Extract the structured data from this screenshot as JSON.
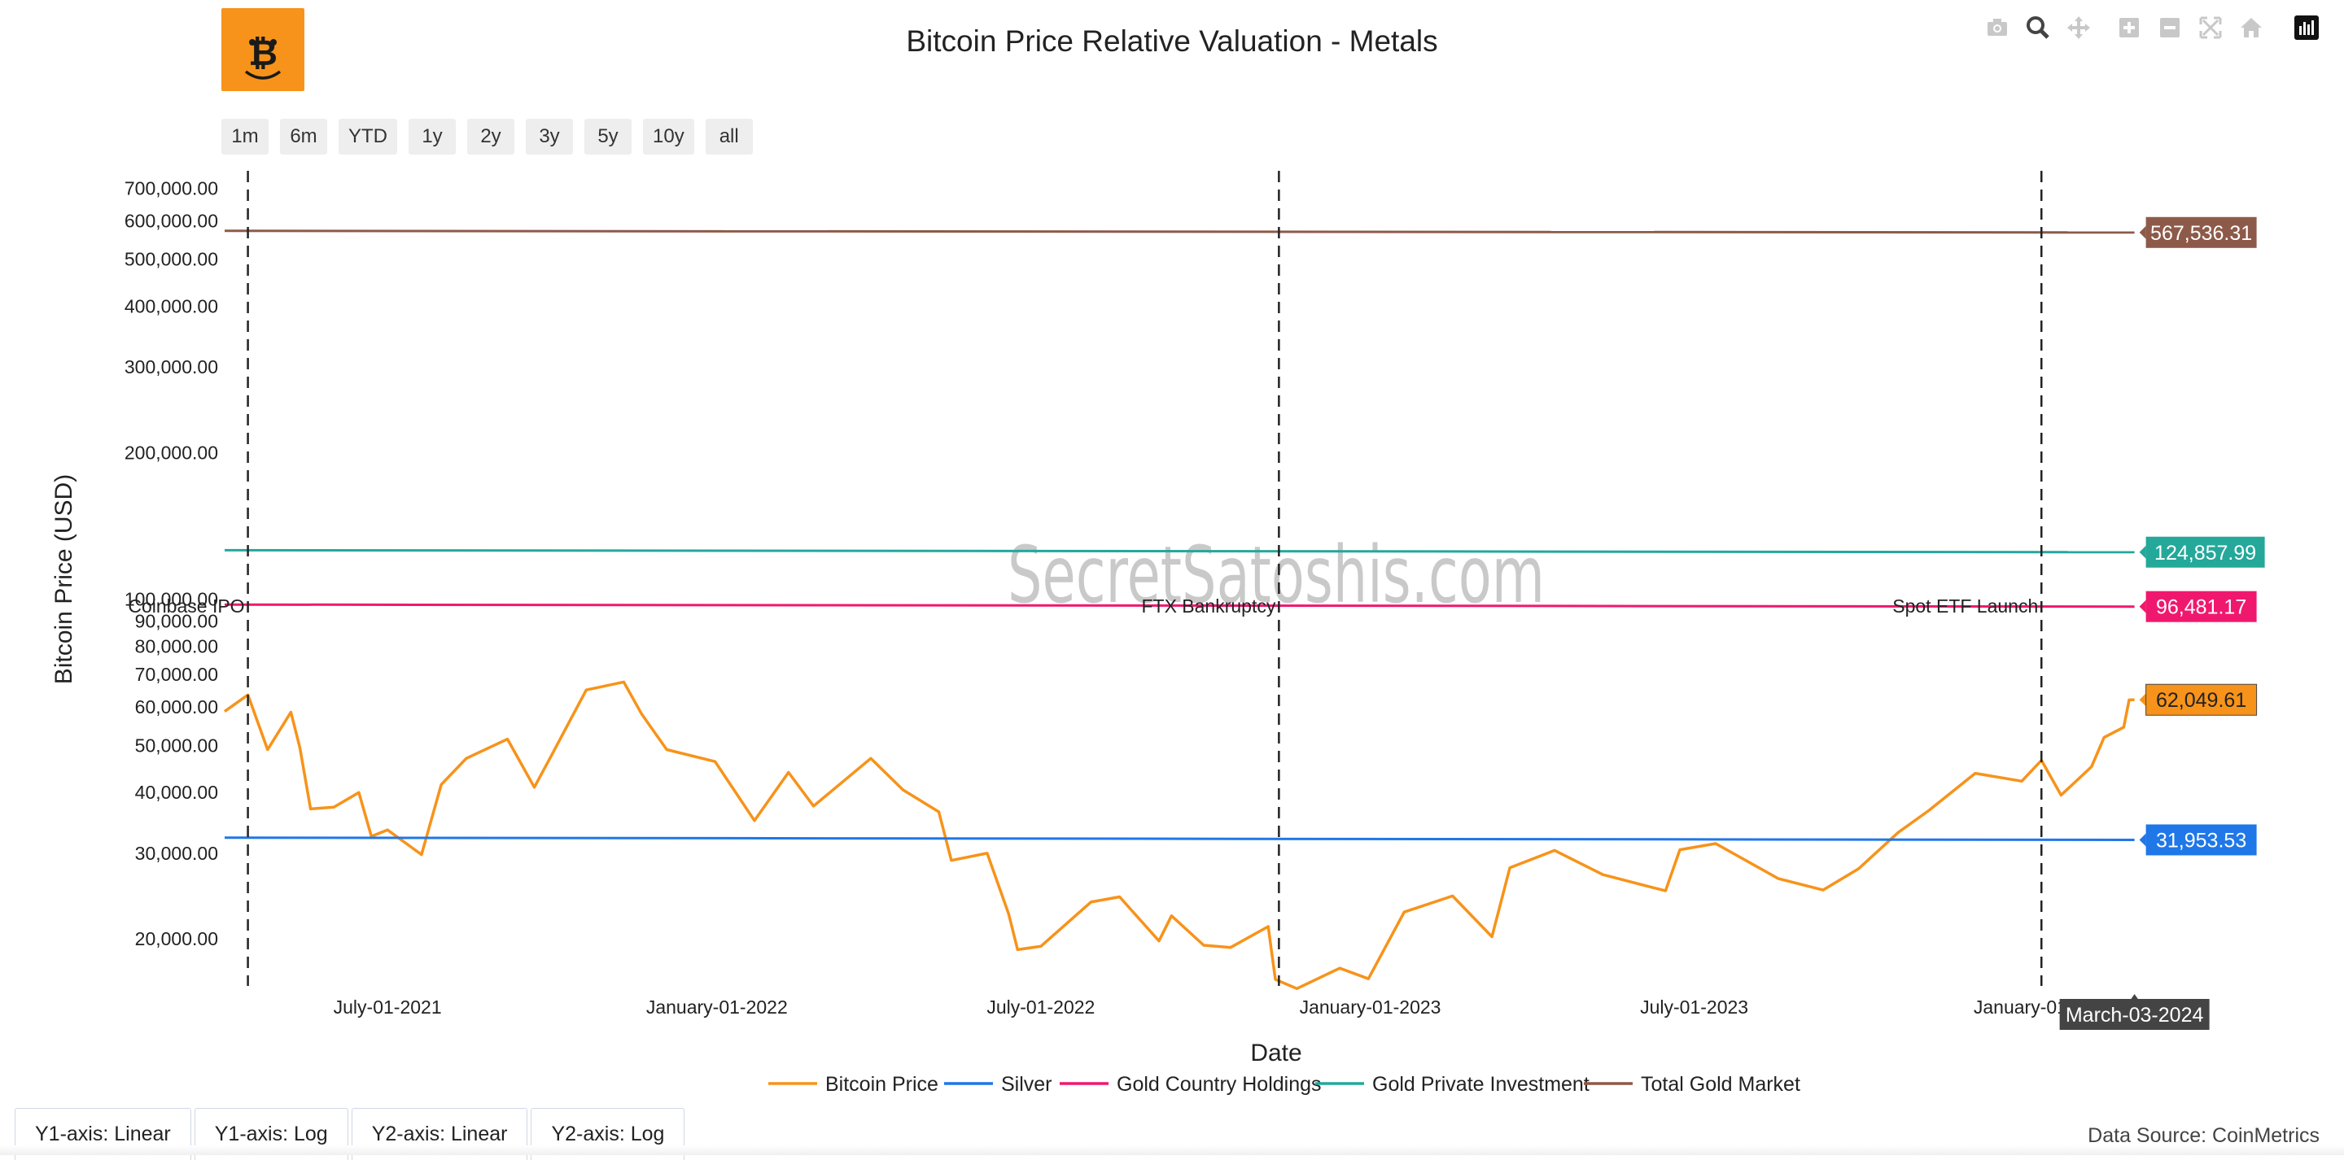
{
  "app": {
    "logo_icon": "bitcoin-face-logo-icon",
    "brand_color": "#f7931a"
  },
  "modebar": [
    {
      "name": "camera-icon",
      "label": "Download plot as png"
    },
    {
      "name": "zoom-icon",
      "label": "Zoom"
    },
    {
      "name": "pan-icon",
      "label": "Pan"
    },
    {
      "name": "zoom-in-icon",
      "label": "Zoom in"
    },
    {
      "name": "zoom-out-icon",
      "label": "Zoom out"
    },
    {
      "name": "autoscale-icon",
      "label": "Autoscale"
    },
    {
      "name": "reset-axes-icon",
      "label": "Reset axes"
    },
    {
      "name": "plotly-logo-icon",
      "label": "Produced with Plotly"
    }
  ],
  "range_buttons": [
    "1m",
    "6m",
    "YTD",
    "1y",
    "2y",
    "3y",
    "5y",
    "10y",
    "all"
  ],
  "axis_toggles": [
    "Y1-axis: Linear",
    "Y1-axis: Log",
    "Y2-axis: Linear",
    "Y2-axis: Log"
  ],
  "data_source": "Data Source: CoinMetrics",
  "watermark": "SecretSatoshis.com",
  "hover_label": "March-03-2024",
  "chart_data": {
    "type": "line",
    "title": "Bitcoin Price Relative Valuation - Metals",
    "xlabel": "Date",
    "ylabel": "Bitcoin Price (USD)",
    "y_scale": "log",
    "ylim": [
      16000,
      760000
    ],
    "xlim": [
      "2021-04-01",
      "2024-03-20"
    ],
    "grid": false,
    "legend_placement": "bottom-center",
    "y_ticks": [
      {
        "value": 20000,
        "label": "20,000.00"
      },
      {
        "value": 30000,
        "label": "30,000.00"
      },
      {
        "value": 40000,
        "label": "40,000.00"
      },
      {
        "value": 50000,
        "label": "50,000.00"
      },
      {
        "value": 60000,
        "label": "60,000.00"
      },
      {
        "value": 70000,
        "label": "70,000.00"
      },
      {
        "value": 80000,
        "label": "80,000.00"
      },
      {
        "value": 90000,
        "label": "90,000.00"
      },
      {
        "value": 100000,
        "label": "100,000.00"
      },
      {
        "value": 200000,
        "label": "200,000.00"
      },
      {
        "value": 300000,
        "label": "300,000.00"
      },
      {
        "value": 400000,
        "label": "400,000.00"
      },
      {
        "value": 500000,
        "label": "500,000.00"
      },
      {
        "value": 600000,
        "label": "600,000.00"
      },
      {
        "value": 700000,
        "label": "700,000.00"
      }
    ],
    "x_ticks": [
      {
        "date": "2021-07-01",
        "label": "July-01-2021"
      },
      {
        "date": "2022-01-01",
        "label": "January-01-2022"
      },
      {
        "date": "2022-07-01",
        "label": "July-01-2022"
      },
      {
        "date": "2023-01-01",
        "label": "January-01-2023"
      },
      {
        "date": "2023-07-01",
        "label": "July-01-2023"
      },
      {
        "date": "2024-01-01",
        "label": "January-01-"
      }
    ],
    "events": [
      {
        "date": "2021-04-14",
        "label": "Coinbase IPO"
      },
      {
        "date": "2022-11-11",
        "label": "FTX Bankruptcy"
      },
      {
        "date": "2024-01-11",
        "label": "Spot ETF Launch"
      }
    ],
    "series": [
      {
        "name": "Bitcoin Price",
        "color": "#f7931a",
        "end_label": "62,049.61",
        "points": [
          [
            "2021-04-01",
            58700
          ],
          [
            "2021-04-14",
            63500
          ],
          [
            "2021-04-25",
            49000
          ],
          [
            "2021-05-08",
            58500
          ],
          [
            "2021-05-13",
            49500
          ],
          [
            "2021-05-19",
            37000
          ],
          [
            "2021-06-01",
            37300
          ],
          [
            "2021-06-15",
            40000
          ],
          [
            "2021-06-22",
            32500
          ],
          [
            "2021-07-01",
            33500
          ],
          [
            "2021-07-20",
            29800
          ],
          [
            "2021-07-31",
            41500
          ],
          [
            "2021-08-14",
            47000
          ],
          [
            "2021-09-06",
            51500
          ],
          [
            "2021-09-21",
            41000
          ],
          [
            "2021-10-01",
            48000
          ],
          [
            "2021-10-20",
            65000
          ],
          [
            "2021-11-10",
            67500
          ],
          [
            "2021-11-20",
            58000
          ],
          [
            "2021-12-04",
            49000
          ],
          [
            "2021-12-31",
            46300
          ],
          [
            "2022-01-22",
            35000
          ],
          [
            "2022-02-10",
            44000
          ],
          [
            "2022-02-24",
            37500
          ],
          [
            "2022-03-28",
            47000
          ],
          [
            "2022-04-15",
            40500
          ],
          [
            "2022-05-05",
            36500
          ],
          [
            "2022-05-12",
            29000
          ],
          [
            "2022-06-01",
            30000
          ],
          [
            "2022-06-13",
            22500
          ],
          [
            "2022-06-18",
            19000
          ],
          [
            "2022-07-01",
            19300
          ],
          [
            "2022-07-29",
            23800
          ],
          [
            "2022-08-14",
            24400
          ],
          [
            "2022-09-05",
            19800
          ],
          [
            "2022-09-12",
            22300
          ],
          [
            "2022-09-30",
            19400
          ],
          [
            "2022-10-15",
            19200
          ],
          [
            "2022-11-05",
            21200
          ],
          [
            "2022-11-09",
            16500
          ],
          [
            "2022-11-21",
            15800
          ],
          [
            "2022-12-15",
            17400
          ],
          [
            "2022-12-31",
            16550
          ],
          [
            "2023-01-20",
            22700
          ],
          [
            "2023-02-16",
            24500
          ],
          [
            "2023-03-10",
            20200
          ],
          [
            "2023-03-20",
            28000
          ],
          [
            "2023-04-14",
            30400
          ],
          [
            "2023-05-11",
            27100
          ],
          [
            "2023-06-15",
            25100
          ],
          [
            "2023-06-23",
            30500
          ],
          [
            "2023-07-13",
            31400
          ],
          [
            "2023-08-17",
            26600
          ],
          [
            "2023-09-11",
            25200
          ],
          [
            "2023-10-01",
            27900
          ],
          [
            "2023-10-23",
            33100
          ],
          [
            "2023-11-09",
            36700
          ],
          [
            "2023-12-05",
            43800
          ],
          [
            "2023-12-31",
            42200
          ],
          [
            "2024-01-11",
            46600
          ],
          [
            "2024-01-22",
            39500
          ],
          [
            "2024-02-08",
            45200
          ],
          [
            "2024-02-15",
            51900
          ],
          [
            "2024-02-26",
            54500
          ],
          [
            "2024-02-29",
            62000
          ],
          [
            "2024-03-03",
            62049.61
          ]
        ]
      },
      {
        "name": "Silver",
        "color": "#1f77e8",
        "end_label": "31,953.53",
        "points": [
          [
            "2021-04-01",
            32300
          ],
          [
            "2024-03-03",
            31953.53
          ]
        ]
      },
      {
        "name": "Gold Country Holdings",
        "color": "#f0186e",
        "end_label": "96,481.17",
        "points": [
          [
            "2021-04-01",
            97400
          ],
          [
            "2024-03-03",
            96481.17
          ]
        ]
      },
      {
        "name": "Gold Private Investment",
        "color": "#24a89a",
        "end_label": "124,857.99",
        "points": [
          [
            "2021-04-01",
            126000
          ],
          [
            "2024-03-03",
            124857.99
          ]
        ]
      },
      {
        "name": "Total Gold Market",
        "color": "#8d5a49",
        "end_label": "567,536.31",
        "points": [
          [
            "2021-04-01",
            572000
          ],
          [
            "2024-03-03",
            567536.31
          ]
        ]
      }
    ]
  }
}
